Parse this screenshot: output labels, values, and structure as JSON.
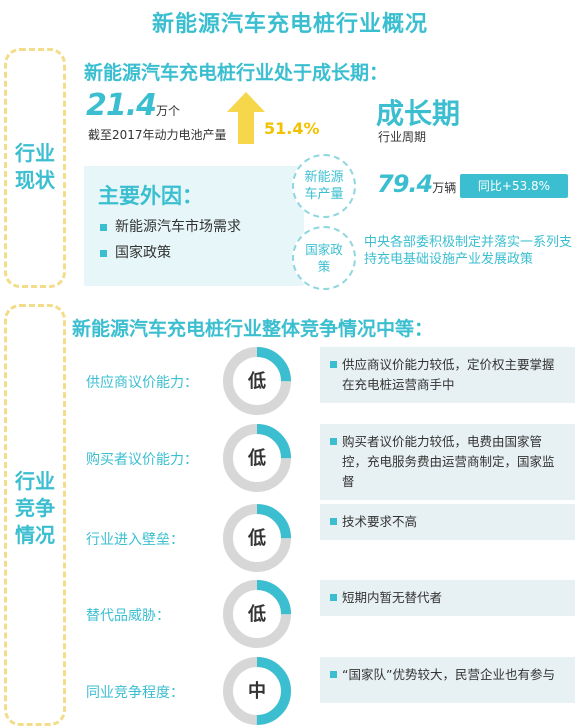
{
  "title": "新能源汽车充电桩行业概况",
  "status_section": {
    "side_label": [
      "行业",
      "现状"
    ],
    "heading": "新能源汽车充电桩行业处于成长期：",
    "battery": {
      "value": "21.4",
      "unit": "万个",
      "caption": "截至2017年动力电池产量",
      "growth": "51.4%"
    },
    "cycle": {
      "value": "成长期",
      "caption": "行业周期"
    },
    "factors": {
      "title": "主要外因：",
      "items": [
        "新能源汽车市场需求",
        "国家政策"
      ]
    },
    "production": {
      "circle_label": "新能源车产量",
      "value": "79.4",
      "unit": "万辆",
      "badge": "同比+53.8%"
    },
    "policy": {
      "circle_label": "国家政策",
      "text": "中央各部委积极制定并落实一系列支持充电基础设施产业发展政策"
    }
  },
  "competition_section": {
    "side_label": [
      "行业",
      "竞争",
      "情况"
    ],
    "heading": "新能源汽车充电桩行业整体竞争情况中等：",
    "rows": [
      {
        "label": "供应商议价能力：",
        "level": "低",
        "fraction": 0.25,
        "desc": "供应商议价能力较低，定价权主要掌握在充电桩运营商手中"
      },
      {
        "label": "购买者议价能力：",
        "level": "低",
        "fraction": 0.25,
        "desc": "购买者议价能力较低，电费由国家管控，充电服务费由运营商制定，国家监督"
      },
      {
        "label": "行业进入壁垒：",
        "level": "低",
        "fraction": 0.25,
        "desc": "技术要求不高"
      },
      {
        "label": "替代品威胁：",
        "level": "低",
        "fraction": 0.25,
        "desc": "短期内暂无替代者"
      },
      {
        "label": "同业竞争程度：",
        "level": "中",
        "fraction": 0.5,
        "desc": "“国家队”优势较大，民营企业也有参与"
      }
    ]
  },
  "colors": {
    "accent": "#3bbfd0",
    "gauge_track": "#d7d7d7",
    "highlight": "#f2c200",
    "dashed_border": "#f3dc8a"
  }
}
